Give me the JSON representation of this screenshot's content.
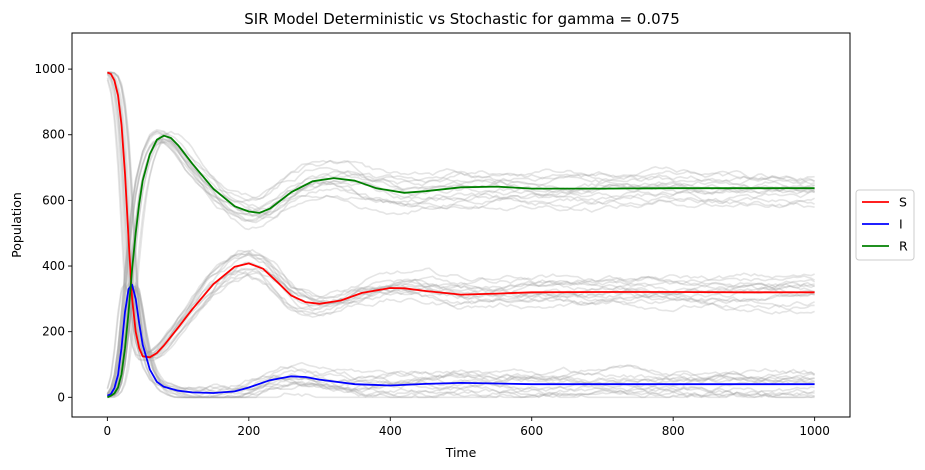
{
  "chart_data": {
    "type": "line",
    "title": "SIR Model Deterministic vs Stochastic for gamma = 0.075",
    "xlabel": "Time",
    "ylabel": "Population",
    "xlim": [
      -50,
      1050
    ],
    "ylim": [
      -60,
      1110
    ],
    "xticks": [
      0,
      200,
      400,
      600,
      800,
      1000
    ],
    "yticks": [
      0,
      200,
      400,
      600,
      800,
      1000
    ],
    "grid": false,
    "legend_position": "right-center",
    "series": [
      {
        "name": "S",
        "color": "#ff0000",
        "x": [
          0,
          5,
          10,
          15,
          20,
          25,
          30,
          35,
          40,
          45,
          50,
          60,
          70,
          80,
          100,
          120,
          150,
          180,
          200,
          220,
          240,
          260,
          280,
          300,
          330,
          360,
          400,
          420,
          450,
          500,
          550,
          600,
          700,
          800,
          900,
          1000
        ],
        "values": [
          990,
          985,
          965,
          920,
          830,
          680,
          480,
          300,
          200,
          150,
          125,
          122,
          135,
          158,
          212,
          268,
          345,
          398,
          408,
          392,
          352,
          310,
          290,
          285,
          295,
          318,
          333,
          332,
          324,
          313,
          316,
          320,
          321,
          321,
          320,
          320
        ]
      },
      {
        "name": "I",
        "color": "#0000ff",
        "x": [
          0,
          5,
          10,
          15,
          20,
          25,
          30,
          35,
          40,
          45,
          50,
          60,
          70,
          80,
          100,
          120,
          150,
          180,
          200,
          230,
          260,
          280,
          300,
          350,
          400,
          450,
          500,
          550,
          600,
          700,
          800,
          900,
          1000
        ],
        "values": [
          5,
          10,
          28,
          68,
          150,
          260,
          330,
          343,
          300,
          225,
          160,
          85,
          47,
          32,
          20,
          15,
          13,
          18,
          30,
          52,
          64,
          62,
          54,
          40,
          36,
          41,
          44,
          42,
          40,
          40,
          40,
          40,
          40
        ]
      },
      {
        "name": "R",
        "color": "#008000",
        "x": [
          0,
          5,
          10,
          15,
          20,
          25,
          30,
          35,
          40,
          45,
          50,
          60,
          70,
          80,
          90,
          100,
          120,
          150,
          180,
          200,
          215,
          230,
          260,
          290,
          320,
          350,
          380,
          420,
          450,
          500,
          550,
          600,
          700,
          800,
          1000
        ],
        "values": [
          0,
          5,
          12,
          30,
          70,
          150,
          260,
          390,
          500,
          590,
          660,
          740,
          785,
          797,
          790,
          768,
          712,
          635,
          582,
          566,
          562,
          575,
          625,
          658,
          668,
          660,
          637,
          623,
          628,
          640,
          642,
          636,
          636,
          637,
          637
        ]
      }
    ]
  }
}
